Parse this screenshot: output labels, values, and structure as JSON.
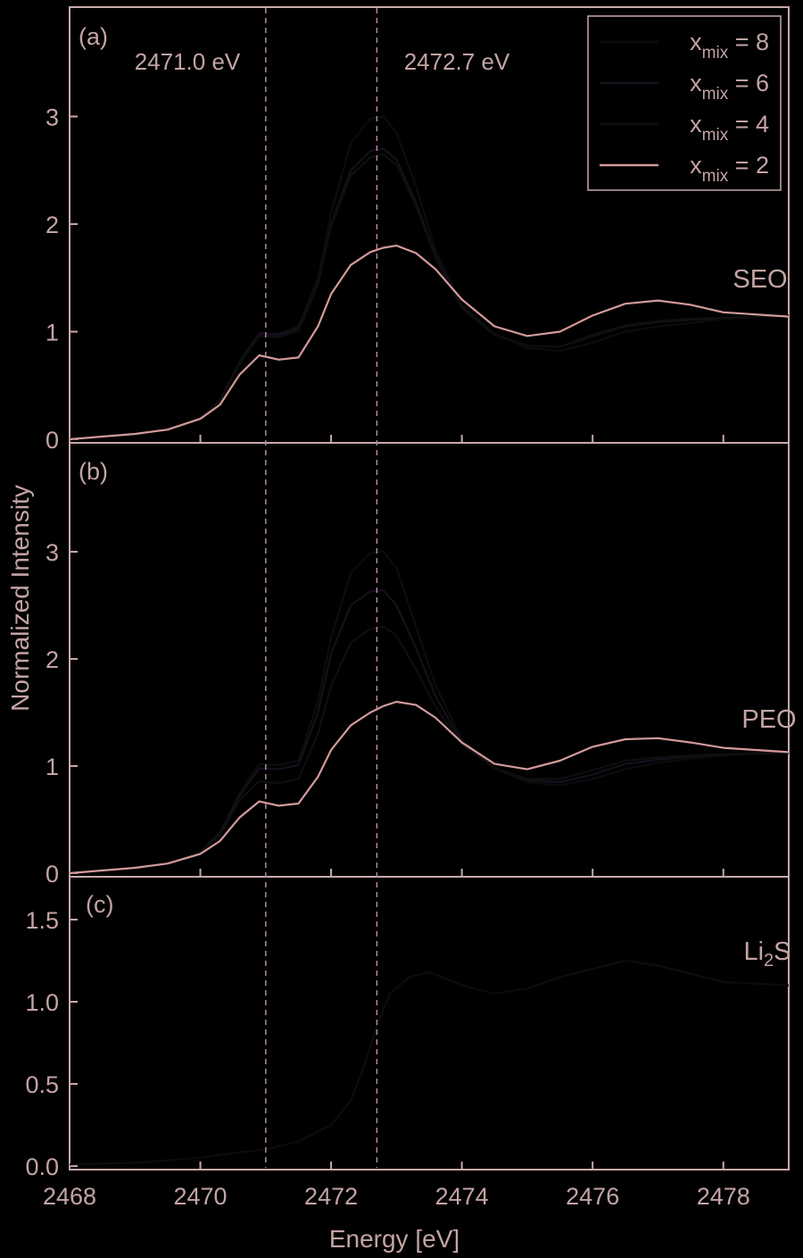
{
  "colors": {
    "background": "#000000",
    "axis": "#c7a9a9",
    "text": "#c4a4a4",
    "ref_line": "#b8899a",
    "x8": "#0c0c0e",
    "x6": "#15101c",
    "x4": "#0d0f0d",
    "x2": "#d49a9a"
  },
  "xlabel": "Energy [eV]",
  "ylabel": "Normalized Intensity",
  "x_range": [
    2468,
    2479
  ],
  "x_ticks": [
    2468,
    2470,
    2472,
    2474,
    2476,
    2478
  ],
  "reference_lines": [
    {
      "x": 2471.0,
      "label": "2471.0 eV"
    },
    {
      "x": 2472.7,
      "label": "2472.7 eV"
    }
  ],
  "legend": {
    "placement": "top-right",
    "items": [
      {
        "base": "x",
        "sub": "mix",
        "suffix": " = 8",
        "color_key": "x8"
      },
      {
        "base": "x",
        "sub": "mix",
        "suffix": " = 6",
        "color_key": "x6"
      },
      {
        "base": "x",
        "sub": "mix",
        "suffix": " = 4",
        "color_key": "x4"
      },
      {
        "base": "x",
        "sub": "mix",
        "suffix": " = 2",
        "color_key": "x2"
      }
    ]
  },
  "chart_data": [
    {
      "type": "line",
      "panel": "(a)",
      "label": "SEO",
      "ylim": [
        0,
        4
      ],
      "y_ticks": [
        0,
        1,
        2,
        3
      ],
      "x": [
        2468,
        2469,
        2469.5,
        2470,
        2470.3,
        2470.6,
        2470.9,
        2471.2,
        2471.5,
        2471.8,
        2472.0,
        2472.3,
        2472.6,
        2472.8,
        2473.0,
        2473.3,
        2473.6,
        2474.0,
        2474.5,
        2475.0,
        2475.5,
        2476.0,
        2476.5,
        2477.0,
        2477.5,
        2478.0,
        2479
      ],
      "series": [
        {
          "name": "x_mix = 8",
          "color_key": "x8",
          "values": [
            0.0,
            0.05,
            0.09,
            0.2,
            0.36,
            0.72,
            0.99,
            0.98,
            1.05,
            1.5,
            2.1,
            2.75,
            2.98,
            3.0,
            2.85,
            2.35,
            1.75,
            1.25,
            0.98,
            0.85,
            0.82,
            0.9,
            1.0,
            1.05,
            1.08,
            1.12,
            1.15
          ]
        },
        {
          "name": "x_mix = 6",
          "color_key": "x6",
          "values": [
            0.0,
            0.05,
            0.09,
            0.2,
            0.36,
            0.72,
            0.98,
            0.97,
            1.03,
            1.45,
            2.0,
            2.5,
            2.68,
            2.7,
            2.6,
            2.2,
            1.7,
            1.23,
            0.97,
            0.87,
            0.86,
            0.96,
            1.05,
            1.09,
            1.11,
            1.13,
            1.15
          ]
        },
        {
          "name": "x_mix = 4",
          "color_key": "x4",
          "values": [
            0.0,
            0.05,
            0.09,
            0.2,
            0.35,
            0.7,
            0.96,
            0.95,
            1.01,
            1.44,
            1.98,
            2.45,
            2.62,
            2.65,
            2.55,
            2.17,
            1.68,
            1.22,
            0.97,
            0.87,
            0.86,
            0.97,
            1.06,
            1.1,
            1.12,
            1.13,
            1.15
          ]
        },
        {
          "name": "x_mix = 2",
          "color_key": "x2",
          "values": [
            0.0,
            0.05,
            0.09,
            0.19,
            0.32,
            0.6,
            0.78,
            0.74,
            0.76,
            1.05,
            1.35,
            1.62,
            1.74,
            1.78,
            1.8,
            1.73,
            1.58,
            1.3,
            1.05,
            0.96,
            1.0,
            1.15,
            1.26,
            1.29,
            1.25,
            1.18,
            1.14
          ]
        }
      ]
    },
    {
      "type": "line",
      "panel": "(b)",
      "label": "PEO",
      "ylim": [
        0,
        4
      ],
      "y_ticks": [
        0,
        1,
        2,
        3
      ],
      "x": [
        2468,
        2469,
        2469.5,
        2470,
        2470.3,
        2470.6,
        2470.9,
        2471.2,
        2471.5,
        2471.8,
        2472.0,
        2472.3,
        2472.6,
        2472.8,
        2473.0,
        2473.3,
        2473.6,
        2474.0,
        2474.5,
        2475.0,
        2475.5,
        2476.0,
        2476.5,
        2477.0,
        2477.5,
        2478.0,
        2479
      ],
      "series": [
        {
          "name": "x_mix = 8",
          "color_key": "x8",
          "values": [
            0.0,
            0.05,
            0.09,
            0.2,
            0.38,
            0.75,
            1.02,
            1.01,
            1.05,
            1.6,
            2.2,
            2.8,
            2.99,
            3.0,
            2.85,
            2.3,
            1.75,
            1.25,
            0.98,
            0.85,
            0.82,
            0.88,
            0.97,
            1.03,
            1.07,
            1.1,
            1.13
          ]
        },
        {
          "name": "x_mix = 6",
          "color_key": "x6",
          "values": [
            0.0,
            0.05,
            0.09,
            0.2,
            0.37,
            0.72,
            0.98,
            0.97,
            1.01,
            1.5,
            2.05,
            2.5,
            2.63,
            2.64,
            2.5,
            2.1,
            1.65,
            1.22,
            0.98,
            0.87,
            0.85,
            0.92,
            1.02,
            1.06,
            1.09,
            1.11,
            1.13
          ]
        },
        {
          "name": "x_mix = 4",
          "color_key": "x4",
          "values": [
            0.0,
            0.05,
            0.09,
            0.2,
            0.35,
            0.68,
            0.86,
            0.84,
            0.88,
            1.3,
            1.75,
            2.15,
            2.28,
            2.3,
            2.22,
            1.9,
            1.55,
            1.2,
            0.98,
            0.88,
            0.88,
            0.96,
            1.05,
            1.08,
            1.1,
            1.11,
            1.12
          ]
        },
        {
          "name": "x_mix = 2",
          "color_key": "x2",
          "values": [
            0.0,
            0.05,
            0.09,
            0.18,
            0.3,
            0.52,
            0.67,
            0.63,
            0.65,
            0.9,
            1.15,
            1.38,
            1.5,
            1.56,
            1.6,
            1.57,
            1.45,
            1.22,
            1.02,
            0.97,
            1.05,
            1.18,
            1.25,
            1.26,
            1.22,
            1.17,
            1.13
          ]
        }
      ]
    },
    {
      "type": "line",
      "panel": "(c)",
      "label_base": "Li",
      "label_sub": "2",
      "label_suffix": "S",
      "ylim": [
        0,
        1.75
      ],
      "y_ticks": [
        0.0,
        0.5,
        1.0,
        1.5
      ],
      "y_tick_labels": [
        "0.0",
        "0.5",
        "1.0",
        "1.5"
      ],
      "x": [
        2468,
        2469,
        2470,
        2470.5,
        2471.0,
        2471.5,
        2472.0,
        2472.3,
        2472.5,
        2472.7,
        2472.9,
        2473.2,
        2473.5,
        2474.0,
        2474.5,
        2475.0,
        2475.5,
        2476.0,
        2476.5,
        2477.0,
        2477.5,
        2478.0,
        2479
      ],
      "series": [
        {
          "name": "Li2S",
          "color_key": "x8",
          "values": [
            0.01,
            0.02,
            0.05,
            0.08,
            0.1,
            0.15,
            0.25,
            0.4,
            0.6,
            0.85,
            1.05,
            1.15,
            1.18,
            1.1,
            1.05,
            1.08,
            1.15,
            1.2,
            1.25,
            1.22,
            1.17,
            1.12,
            1.1
          ]
        }
      ]
    }
  ]
}
